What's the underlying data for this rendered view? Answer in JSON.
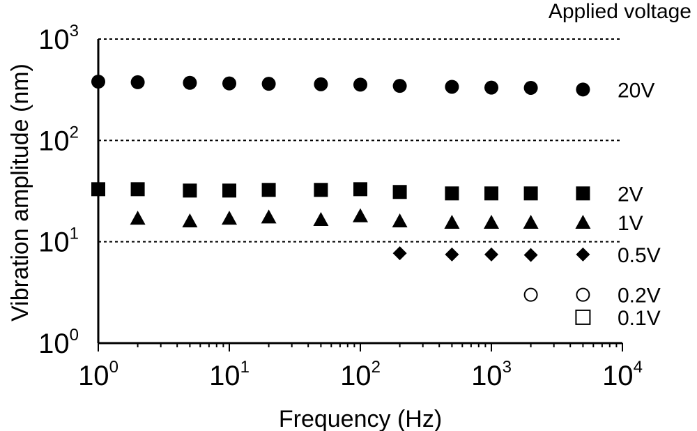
{
  "chart_data": {
    "type": "scatter",
    "title": "",
    "xlabel": "Frequency (Hz)",
    "ylabel": "Vibration amplitude (nm)",
    "x_scale": "log",
    "y_scale": "log",
    "xlim": [
      1,
      10000
    ],
    "ylim": [
      1,
      1000
    ],
    "x_ticks": [
      {
        "base": "10",
        "exp": "0"
      },
      {
        "base": "10",
        "exp": "1"
      },
      {
        "base": "10",
        "exp": "2"
      },
      {
        "base": "10",
        "exp": "3"
      },
      {
        "base": "10",
        "exp": "4"
      }
    ],
    "y_ticks": [
      {
        "base": "10",
        "exp": "0"
      },
      {
        "base": "10",
        "exp": "1"
      },
      {
        "base": "10",
        "exp": "2"
      },
      {
        "base": "10",
        "exp": "3"
      }
    ],
    "grid": "horizontal dashed at 10, 100, 1000",
    "legend_title": "Applied voltage",
    "series": [
      {
        "name": "20V",
        "marker": "filled-circle",
        "x": [
          1,
          2,
          5,
          10,
          20,
          50,
          100,
          200,
          500,
          1000,
          2000,
          5000
        ],
        "y": [
          380,
          375,
          370,
          365,
          362,
          358,
          355,
          345,
          338,
          332,
          330,
          318
        ]
      },
      {
        "name": "2V",
        "marker": "filled-square",
        "x": [
          1,
          2,
          5,
          10,
          20,
          50,
          100,
          200,
          500,
          1000,
          2000,
          5000
        ],
        "y": [
          33,
          33,
          32,
          32,
          32.5,
          32.5,
          33,
          31,
          30,
          30,
          30,
          30
        ]
      },
      {
        "name": "1V",
        "marker": "filled-triangle",
        "x": [
          2,
          5,
          10,
          20,
          50,
          100,
          200,
          500,
          1000,
          2000,
          5000
        ],
        "y": [
          17,
          16,
          17,
          17.5,
          16.5,
          18,
          16,
          15.5,
          15.5,
          15.5,
          15.5
        ]
      },
      {
        "name": "0.5V",
        "marker": "filled-diamond",
        "x": [
          200,
          500,
          1000,
          2000,
          5000
        ],
        "y": [
          7.7,
          7.5,
          7.5,
          7.4,
          7.5
        ]
      },
      {
        "name": "0.2V",
        "marker": "open-circle",
        "x": [
          2000,
          5000
        ],
        "y": [
          3.0,
          3.0
        ]
      },
      {
        "name": "0.1V",
        "marker": "open-square",
        "x": [
          5000
        ],
        "y": [
          1.8
        ]
      }
    ]
  }
}
